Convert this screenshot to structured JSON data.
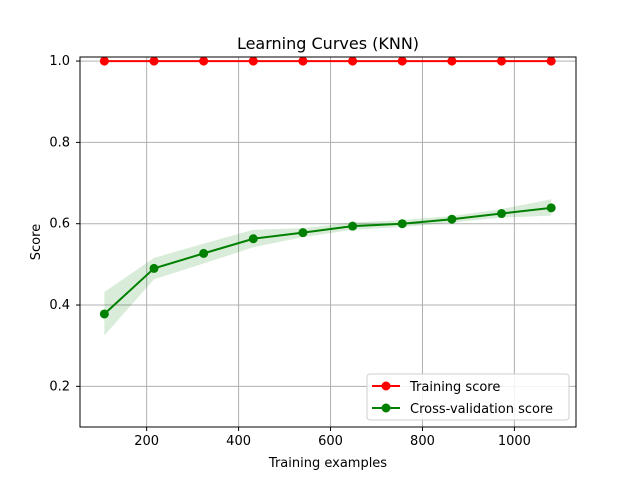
{
  "chart_data": {
    "type": "line",
    "title": "Learning Curves (KNN)",
    "xlabel": "Training examples",
    "ylabel": "Score",
    "xlim": [
      55,
      1134
    ],
    "ylim": [
      0.1,
      1.01
    ],
    "x_ticks": [
      200,
      400,
      600,
      800,
      1000
    ],
    "y_ticks": [
      0.2,
      0.4,
      0.6,
      0.8,
      1.0
    ],
    "x_tick_labels": [
      "200",
      "400",
      "600",
      "800",
      "1000"
    ],
    "y_tick_labels": [
      "0.2",
      "0.4",
      "0.6",
      "0.8",
      "1.0"
    ],
    "grid": true,
    "legend_position": "lower-right",
    "x": [
      108,
      216,
      324,
      432,
      540,
      648,
      756,
      864,
      972,
      1080
    ],
    "series": [
      {
        "name": "Training score",
        "color": "#ff0000",
        "marker": "circle",
        "values": [
          1.0,
          1.0,
          1.0,
          1.0,
          1.0,
          1.0,
          1.0,
          1.0,
          1.0,
          1.0
        ],
        "band_lower": [
          1.0,
          1.0,
          1.0,
          1.0,
          1.0,
          1.0,
          1.0,
          1.0,
          1.0,
          1.0
        ],
        "band_upper": [
          1.0,
          1.0,
          1.0,
          1.0,
          1.0,
          1.0,
          1.0,
          1.0,
          1.0,
          1.0
        ],
        "band_color": "#ff0000"
      },
      {
        "name": "Cross-validation score",
        "color": "#008000",
        "marker": "circle",
        "values": [
          0.378,
          0.49,
          0.527,
          0.563,
          0.578,
          0.594,
          0.6,
          0.611,
          0.625,
          0.639
        ],
        "band_lower": [
          0.325,
          0.463,
          0.502,
          0.542,
          0.567,
          0.585,
          0.592,
          0.603,
          0.615,
          0.62
        ],
        "band_upper": [
          0.432,
          0.516,
          0.551,
          0.585,
          0.589,
          0.603,
          0.609,
          0.619,
          0.636,
          0.66
        ],
        "band_color": "#008000"
      }
    ]
  }
}
